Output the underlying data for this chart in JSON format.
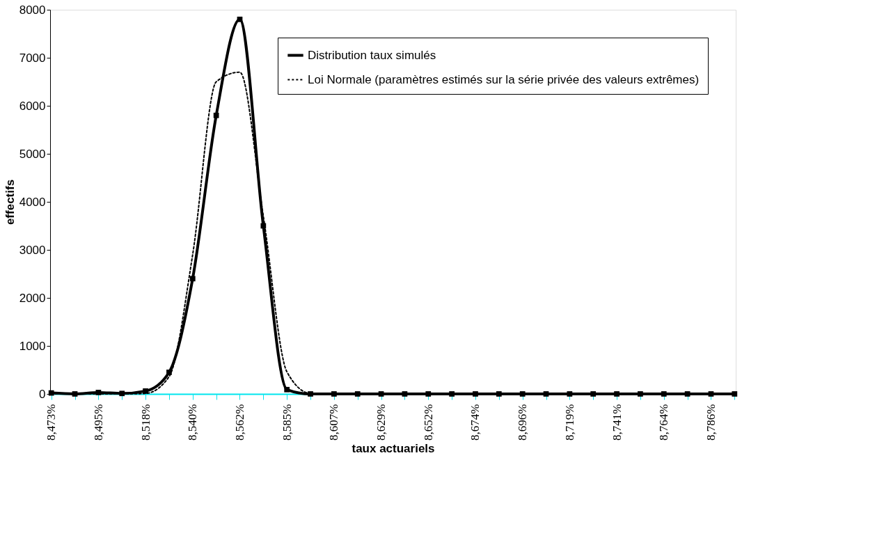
{
  "chart_data": {
    "type": "line",
    "xlabel": "taux actuariels",
    "ylabel": "effectifs",
    "categories": [
      "8,473%",
      null,
      "8,495%",
      null,
      "8,518%",
      null,
      "8,540%",
      null,
      "8,562%",
      null,
      "8,585%",
      null,
      "8,607%",
      null,
      "8,629%",
      null,
      "8,652%",
      null,
      "8,674%",
      null,
      "8,696%",
      null,
      "8,719%",
      null,
      "8,741%",
      null,
      "8,764%",
      null,
      "8,786%",
      null
    ],
    "ylim": [
      0,
      8000
    ],
    "yticks": [
      0,
      1000,
      2000,
      3000,
      4000,
      5000,
      6000,
      7000,
      8000
    ],
    "legend": "top right",
    "grid": false,
    "series": [
      {
        "name": "Distribution taux simulés",
        "color": "#000000",
        "line_style": "solid",
        "marker": "square",
        "values": [
          20,
          0,
          30,
          10,
          60,
          450,
          2400,
          5800,
          7800,
          3500,
          90,
          0,
          0,
          0,
          0,
          0,
          0,
          0,
          0,
          0,
          0,
          0,
          0,
          0,
          0,
          0,
          0,
          0,
          0,
          0
        ]
      },
      {
        "name": "Loi Normale (paramètres estimés sur la série privée des valeurs extrêmes)",
        "color": "#000000",
        "line_style": "dotted",
        "marker": "none",
        "values": [
          0,
          0,
          0,
          0,
          10,
          360,
          2900,
          6500,
          6700,
          3700,
          460,
          10,
          0,
          0,
          0,
          0,
          0,
          0,
          0,
          0,
          0,
          0,
          0,
          0,
          0,
          0,
          0,
          0,
          0,
          0
        ]
      }
    ]
  }
}
